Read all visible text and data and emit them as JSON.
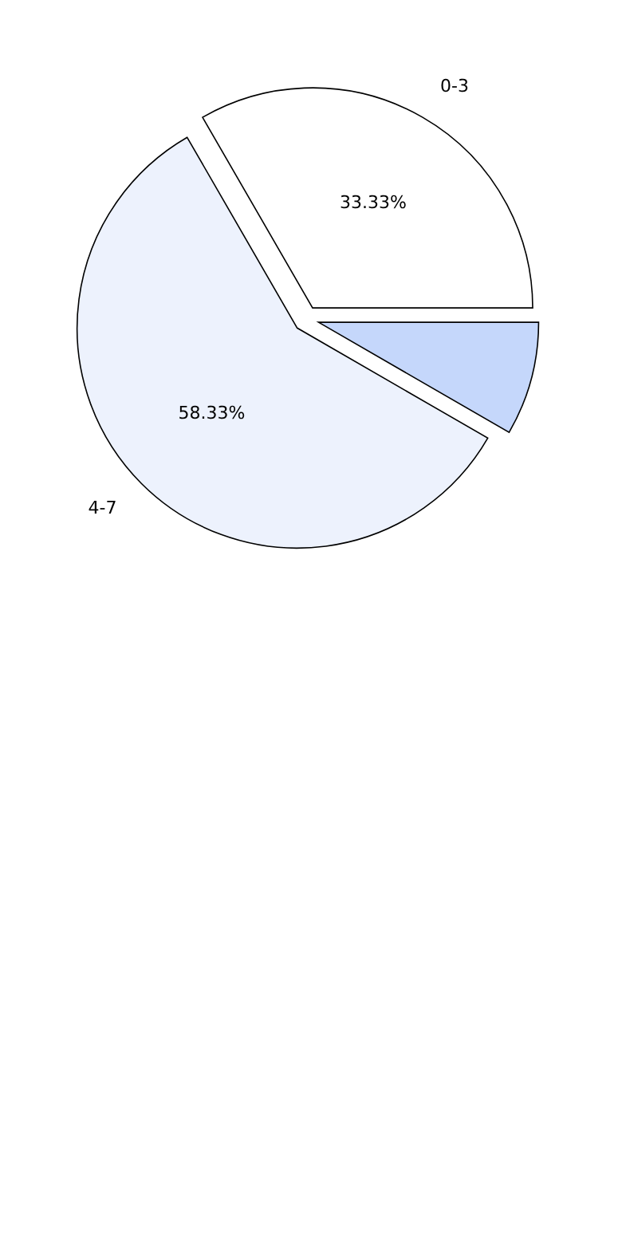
{
  "chart_data": {
    "type": "pie",
    "categories": [
      "0-3",
      null,
      "4-7"
    ],
    "values": [
      33.33,
      8.34,
      58.33
    ],
    "colors": [
      "#ffffff",
      "#c5d7fb",
      "#edf2fd"
    ],
    "value_labels": [
      "33.33%",
      null,
      "58.33%"
    ]
  }
}
